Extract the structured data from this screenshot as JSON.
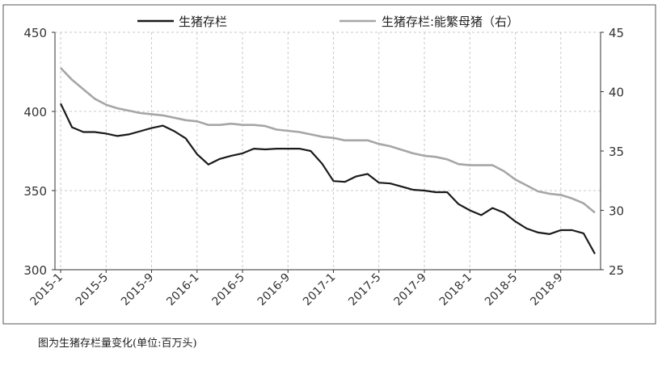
{
  "chart_data": {
    "type": "line",
    "title": "",
    "caption": "图为生猪存栏量变化(单位:百万头)",
    "x": [
      "2015-1",
      "2015-2",
      "2015-3",
      "2015-4",
      "2015-5",
      "2015-6",
      "2015-7",
      "2015-8",
      "2015-9",
      "2015-10",
      "2015-11",
      "2015-12",
      "2016-1",
      "2016-2",
      "2016-3",
      "2016-4",
      "2016-5",
      "2016-6",
      "2016-7",
      "2016-8",
      "2016-9",
      "2016-10",
      "2016-11",
      "2016-12",
      "2017-1",
      "2017-2",
      "2017-3",
      "2017-4",
      "2017-5",
      "2017-6",
      "2017-7",
      "2017-8",
      "2017-9",
      "2017-10",
      "2017-11",
      "2017-12",
      "2018-1",
      "2018-2",
      "2018-3",
      "2018-4",
      "2018-5",
      "2018-6",
      "2018-7",
      "2018-8",
      "2018-9",
      "2018-10",
      "2018-11",
      "2018-12"
    ],
    "x_tick_labels": [
      "2015-1",
      "2015-5",
      "2015-9",
      "2016-1",
      "2016-5",
      "2016-9",
      "2017-1",
      "2017-5",
      "2017-9",
      "2018-1",
      "2018-5",
      "2018-9"
    ],
    "y_left": {
      "min": 300,
      "max": 450,
      "ticks": [
        "300",
        "350",
        "400",
        "450"
      ]
    },
    "y_right": {
      "min": 25,
      "max": 45,
      "ticks": [
        "25",
        "30",
        "35",
        "40",
        "45"
      ]
    },
    "grid": true,
    "legend_position": "top",
    "series": [
      {
        "name": "生猪存栏",
        "axis": "left",
        "color": "#1a1a1a",
        "values": [
          405,
          390,
          387,
          387,
          386,
          384.5,
          385.5,
          387.5,
          389.5,
          391,
          387.5,
          383,
          373,
          366.5,
          370,
          372,
          373.5,
          376.5,
          376,
          376.5,
          376.5,
          376.5,
          375,
          367,
          356,
          355.5,
          359,
          360.5,
          355,
          354.5,
          352.5,
          350.5,
          350,
          349,
          349,
          341.5,
          337.5,
          334.5,
          339,
          336,
          330.5,
          326,
          323.5,
          322.5,
          325,
          325,
          323,
          310
        ]
      },
      {
        "name": "生猪存栏:能繁母猪（右）",
        "axis": "right",
        "color": "#a6a6a6",
        "values": [
          42,
          41,
          40.2,
          39.4,
          38.9,
          38.6,
          38.4,
          38.2,
          38.1,
          38.0,
          37.8,
          37.6,
          37.5,
          37.2,
          37.2,
          37.3,
          37.2,
          37.2,
          37.1,
          36.8,
          36.7,
          36.6,
          36.4,
          36.2,
          36.1,
          35.9,
          35.9,
          35.9,
          35.6,
          35.4,
          35.1,
          34.8,
          34.6,
          34.5,
          34.3,
          33.9,
          33.8,
          33.8,
          33.8,
          33.3,
          32.6,
          32.1,
          31.6,
          31.4,
          31.3,
          31.0,
          30.6,
          29.8
        ]
      }
    ]
  }
}
